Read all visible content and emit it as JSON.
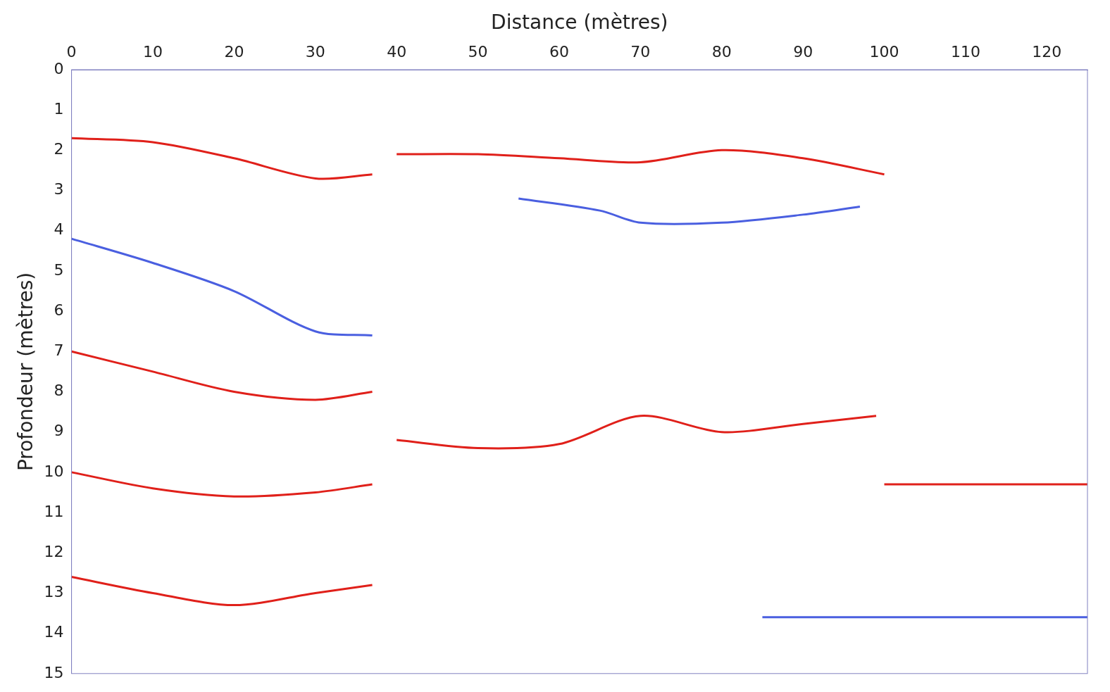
{
  "chart_data": {
    "type": "line",
    "x_label": "Distance (mètres)",
    "y_label": "Profondeur (mètres)",
    "xlim": [
      0,
      125
    ],
    "xticks": [
      0,
      10,
      20,
      30,
      40,
      50,
      60,
      70,
      80,
      90,
      100,
      110,
      120
    ],
    "ylim": [
      15,
      0
    ],
    "yticks": [
      0,
      1,
      2,
      3,
      4,
      5,
      6,
      7,
      8,
      9,
      10,
      11,
      12,
      13,
      14,
      15
    ],
    "grid": false,
    "series": [
      {
        "color": "#e0201a",
        "x": [
          0,
          10,
          20,
          30,
          37
        ],
        "values": [
          1.7,
          1.8,
          2.2,
          2.7,
          2.6
        ]
      },
      {
        "color": "#4a5fe0",
        "x": [
          0,
          10,
          20,
          30,
          37
        ],
        "values": [
          4.2,
          4.8,
          5.5,
          6.5,
          6.6
        ]
      },
      {
        "color": "#e0201a",
        "x": [
          0,
          10,
          20,
          30,
          37
        ],
        "values": [
          7.0,
          7.5,
          8.0,
          8.2,
          8.0
        ]
      },
      {
        "color": "#e0201a",
        "x": [
          0,
          10,
          20,
          30,
          37
        ],
        "values": [
          10.0,
          10.4,
          10.6,
          10.5,
          10.3
        ]
      },
      {
        "color": "#e0201a",
        "x": [
          0,
          10,
          20,
          30,
          37
        ],
        "values": [
          12.6,
          13.0,
          13.3,
          13.0,
          12.8
        ]
      },
      {
        "color": "#e0201a",
        "x": [
          40,
          50,
          60,
          70,
          80,
          90,
          100
        ],
        "values": [
          2.1,
          2.1,
          2.2,
          2.3,
          2.0,
          2.2,
          2.6
        ]
      },
      {
        "color": "#4a5fe0",
        "x": [
          55,
          65,
          70,
          80,
          90,
          97
        ],
        "values": [
          3.2,
          3.5,
          3.8,
          3.8,
          3.6,
          3.4
        ]
      },
      {
        "color": "#e0201a",
        "x": [
          40,
          50,
          60,
          70,
          80,
          90,
          99
        ],
        "values": [
          9.2,
          9.4,
          9.3,
          8.6,
          9.0,
          8.8,
          8.6
        ]
      },
      {
        "color": "#e0201a",
        "x": [
          100,
          110,
          120,
          125
        ],
        "values": [
          10.3,
          10.3,
          10.3,
          10.3
        ]
      },
      {
        "color": "#4a5fe0",
        "x": [
          85,
          100,
          110,
          125
        ],
        "values": [
          13.6,
          13.6,
          13.6,
          13.6
        ]
      }
    ]
  }
}
